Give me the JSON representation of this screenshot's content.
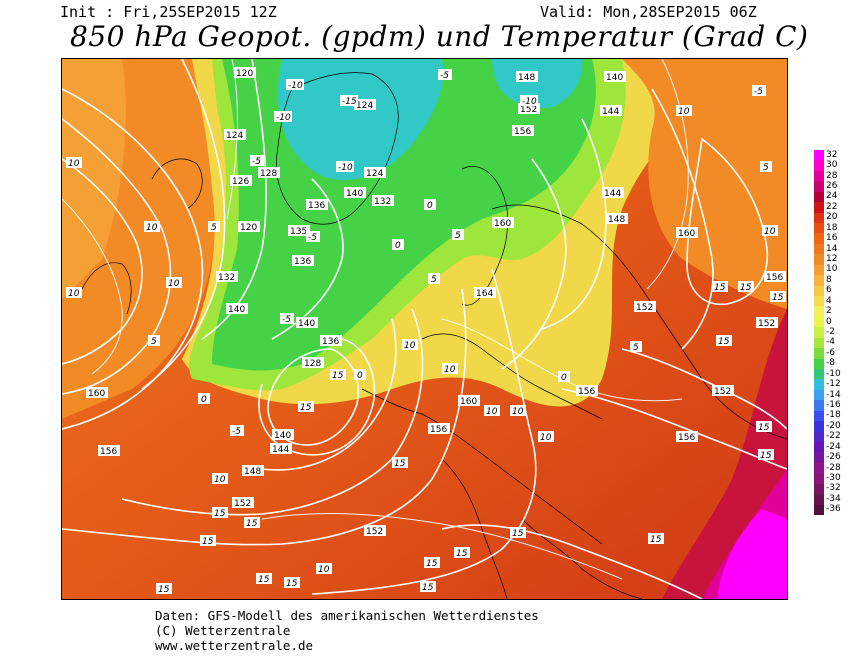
{
  "header": {
    "init": "Init : Fri,25SEP2015 12Z",
    "valid": "Valid: Mon,28SEP2015 06Z",
    "title": "850 hPa Geopot. (gpdm) und Temperatur (Grad C)"
  },
  "footer": {
    "line1": "Daten: GFS-Modell des amerikanischen Wetterdienstes",
    "line2": "(C) Wetterzentrale",
    "line3": "www.wetterzentrale.de"
  },
  "legend": {
    "labels": [
      "32",
      "30",
      "28",
      "26",
      "24",
      "22",
      "20",
      "18",
      "16",
      "14",
      "12",
      "10",
      "8",
      "6",
      "4",
      "2",
      "0",
      "-2",
      "-4",
      "-6",
      "-8",
      "-10",
      "-12",
      "-14",
      "-16",
      "-18",
      "-20",
      "-22",
      "-24",
      "-26",
      "-28",
      "-30",
      "-32",
      "-34",
      "-36"
    ],
    "colors": [
      "#ff00ff",
      "#ff00cc",
      "#e0009a",
      "#c8006e",
      "#b40032",
      "#cc1414",
      "#e03214",
      "#e85014",
      "#f06414",
      "#f0781e",
      "#f08c28",
      "#f5a032",
      "#f5b43c",
      "#f5c846",
      "#f5dc50",
      "#f5f05a",
      "#e6f550",
      "#c8f046",
      "#aae63c",
      "#78dc3c",
      "#46d246",
      "#32c878",
      "#32bedc",
      "#3ca0f0",
      "#3c78f0",
      "#3c50f0",
      "#3c32dc",
      "#5028c8",
      "#6414b4",
      "#7814a0",
      "#8c148c",
      "#8c1478",
      "#781464",
      "#641450",
      "#50143c"
    ]
  },
  "map": {
    "geopotential_labels": [
      "120",
      "120",
      "124",
      "124",
      "124",
      "126",
      "128",
      "128",
      "132",
      "132",
      "135",
      "136",
      "136",
      "136",
      "140",
      "140",
      "140",
      "140",
      "140",
      "144",
      "144",
      "144",
      "148",
      "148",
      "148",
      "152",
      "152",
      "152",
      "152",
      "152",
      "152",
      "156",
      "156",
      "156",
      "156",
      "156",
      "156",
      "160",
      "160",
      "160",
      "160",
      "164"
    ],
    "temperature_labels": [
      "-10",
      "-10",
      "-10",
      "-10",
      "-15",
      "-5",
      "-5",
      "-5",
      "-5",
      "-5",
      "-5",
      "0",
      "0",
      "0",
      "0",
      "0",
      "5",
      "5",
      "5",
      "5",
      "5",
      "5",
      "10",
      "10",
      "10",
      "10",
      "10",
      "10",
      "10",
      "10",
      "10",
      "10",
      "10",
      "10",
      "10",
      "15",
      "15",
      "15",
      "15",
      "15",
      "15",
      "15",
      "15",
      "15",
      "15",
      "15",
      "15",
      "15",
      "15",
      "15",
      "15",
      "15",
      "15",
      "15",
      "15"
    ]
  }
}
